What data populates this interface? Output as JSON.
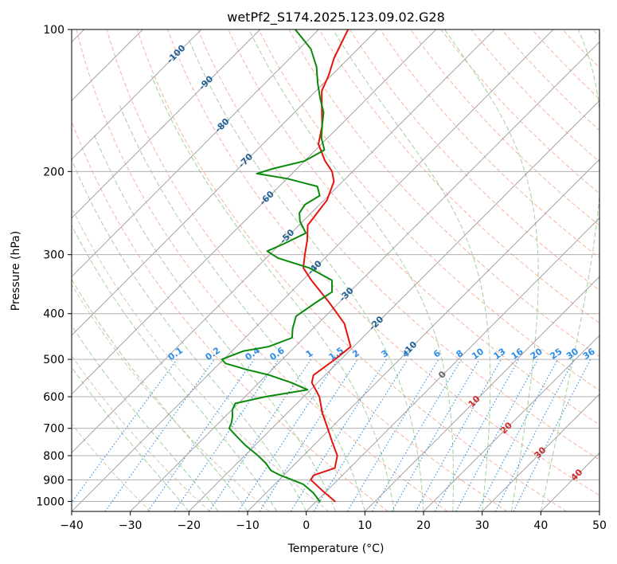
{
  "chart_data": {
    "type": "line",
    "chart_kind": "skew-T log-P diagram",
    "title": "wetPf2_S174.2025.123.09.02.G28",
    "xlabel": "Temperature (°C)",
    "ylabel": "Pressure (hPa)",
    "xlim": [
      -40,
      50
    ],
    "ylim": [
      1050,
      100
    ],
    "y_scale": "log",
    "grid": true,
    "x_ticks": [
      -40,
      -30,
      -20,
      -10,
      0,
      10,
      20,
      30,
      40,
      50
    ],
    "x_tick_labels": [
      "−40",
      "−30",
      "−20",
      "−10",
      "0",
      "10",
      "20",
      "30",
      "40",
      "50"
    ],
    "y_ticks": [
      1000,
      900,
      800,
      700,
      600,
      500,
      400,
      300,
      200,
      100
    ],
    "y_tick_labels": [
      "1000",
      "900",
      "800",
      "700",
      "600",
      "500",
      "400",
      "300",
      "200",
      "100"
    ],
    "colors": {
      "temperature": "#e8120c",
      "dewpoint": "#0a8a0a",
      "isotherm": "#9a9a9a",
      "dry_adiabat": "#f2a185",
      "moist_adiabat": "#9fd39a",
      "mixing_ratio": "#2b8ce8",
      "isotherm_label": "#1f5f96",
      "freezing_label": "#666666",
      "warm_label": "#d02a2a",
      "dry_adiabat_alt": "#cbb9a0"
    },
    "series": [
      {
        "name": "temperature",
        "color": "#e8120c",
        "points": [
          {
            "p": 1000,
            "t": 3.2
          },
          {
            "p": 950,
            "t": -0.7
          },
          {
            "p": 900,
            "t": -4.6
          },
          {
            "p": 880,
            "t": -4.9
          },
          {
            "p": 850,
            "t": -2.5
          },
          {
            "p": 800,
            "t": -4.2
          },
          {
            "p": 750,
            "t": -7.3
          },
          {
            "p": 700,
            "t": -10.5
          },
          {
            "p": 650,
            "t": -14.0
          },
          {
            "p": 600,
            "t": -17.3
          },
          {
            "p": 560,
            "t": -21.0
          },
          {
            "p": 540,
            "t": -22.0
          },
          {
            "p": 500,
            "t": -21.0
          },
          {
            "p": 470,
            "t": -20.5
          },
          {
            "p": 420,
            "t": -25.5
          },
          {
            "p": 380,
            "t": -31.5
          },
          {
            "p": 340,
            "t": -38.5
          },
          {
            "p": 320,
            "t": -42.0
          },
          {
            "p": 300,
            "t": -44.0
          },
          {
            "p": 280,
            "t": -46.0
          },
          {
            "p": 260,
            "t": -48.5
          },
          {
            "p": 245,
            "t": -49.0
          },
          {
            "p": 230,
            "t": -49.5
          },
          {
            "p": 210,
            "t": -51.5
          },
          {
            "p": 200,
            "t": -53.5
          },
          {
            "p": 190,
            "t": -56.5
          },
          {
            "p": 175,
            "t": -60.5
          },
          {
            "p": 160,
            "t": -63.0
          },
          {
            "p": 145,
            "t": -66.5
          },
          {
            "p": 135,
            "t": -69.0
          },
          {
            "p": 125,
            "t": -70.5
          },
          {
            "p": 115,
            "t": -72.5
          },
          {
            "p": 100,
            "t": -75.0
          }
        ]
      },
      {
        "name": "dewpoint",
        "color": "#0a8a0a",
        "points": [
          {
            "p": 1000,
            "t": 0.6
          },
          {
            "p": 960,
            "t": -1.9
          },
          {
            "p": 920,
            "t": -5.1
          },
          {
            "p": 900,
            "t": -7.8
          },
          {
            "p": 880,
            "t": -10.6
          },
          {
            "p": 860,
            "t": -13.0
          },
          {
            "p": 830,
            "t": -15.1
          },
          {
            "p": 800,
            "t": -17.7
          },
          {
            "p": 760,
            "t": -21.7
          },
          {
            "p": 720,
            "t": -25.4
          },
          {
            "p": 700,
            "t": -27.3
          },
          {
            "p": 680,
            "t": -27.9
          },
          {
            "p": 660,
            "t": -28.8
          },
          {
            "p": 640,
            "t": -29.9
          },
          {
            "p": 620,
            "t": -30.5
          },
          {
            "p": 600,
            "t": -26.5
          },
          {
            "p": 580,
            "t": -20.5
          },
          {
            "p": 560,
            "t": -24.5
          },
          {
            "p": 540,
            "t": -29.5
          },
          {
            "p": 525,
            "t": -34.5
          },
          {
            "p": 510,
            "t": -39.0
          },
          {
            "p": 500,
            "t": -40.3
          },
          {
            "p": 480,
            "t": -38.0
          },
          {
            "p": 470,
            "t": -34.5
          },
          {
            "p": 450,
            "t": -32.0
          },
          {
            "p": 430,
            "t": -33.5
          },
          {
            "p": 405,
            "t": -35.0
          },
          {
            "p": 380,
            "t": -34.0
          },
          {
            "p": 360,
            "t": -33.0
          },
          {
            "p": 340,
            "t": -35.0
          },
          {
            "p": 320,
            "t": -41.0
          },
          {
            "p": 305,
            "t": -48.0
          },
          {
            "p": 295,
            "t": -51.0
          },
          {
            "p": 285,
            "t": -49.5
          },
          {
            "p": 270,
            "t": -47.5
          },
          {
            "p": 255,
            "t": -50.5
          },
          {
            "p": 245,
            "t": -52.0
          },
          {
            "p": 235,
            "t": -52.5
          },
          {
            "p": 225,
            "t": -51.5
          },
          {
            "p": 215,
            "t": -53.5
          },
          {
            "p": 207,
            "t": -60.0
          },
          {
            "p": 202,
            "t": -66.0
          },
          {
            "p": 197,
            "t": -64.0
          },
          {
            "p": 190,
            "t": -60.0
          },
          {
            "p": 180,
            "t": -58.5
          },
          {
            "p": 170,
            "t": -61.0
          },
          {
            "p": 160,
            "t": -63.0
          },
          {
            "p": 150,
            "t": -65.0
          },
          {
            "p": 140,
            "t": -68.0
          },
          {
            "p": 130,
            "t": -71.0
          },
          {
            "p": 120,
            "t": -74.0
          },
          {
            "p": 110,
            "t": -78.0
          },
          {
            "p": 100,
            "t": -84.0
          }
        ]
      }
    ],
    "isotherm_labels": [
      {
        "value": -100,
        "text": "-100",
        "p": 113
      },
      {
        "value": -90,
        "text": "-90",
        "p": 130
      },
      {
        "value": -80,
        "text": "-80",
        "p": 160
      },
      {
        "value": -70,
        "text": "-70",
        "p": 190
      },
      {
        "value": -60,
        "text": "-60",
        "p": 228
      },
      {
        "value": -50,
        "text": "-50",
        "p": 275
      },
      {
        "value": -40,
        "text": "-40",
        "p": 320
      },
      {
        "value": -30,
        "text": "-30",
        "p": 365
      },
      {
        "value": -20,
        "text": "-20",
        "p": 420
      },
      {
        "value": -10,
        "text": "-10",
        "p": 475
      },
      {
        "value": 0,
        "text": "0",
        "p": 540
      },
      {
        "value": 10,
        "text": "10",
        "p": 615
      },
      {
        "value": 20,
        "text": "20",
        "p": 700
      },
      {
        "value": 30,
        "text": "30",
        "p": 790
      },
      {
        "value": 40,
        "text": "40",
        "p": 880
      }
    ],
    "mixing_ratios": [
      {
        "value": 0.1,
        "text": "0.1"
      },
      {
        "value": 0.2,
        "text": "0.2"
      },
      {
        "value": 0.4,
        "text": "0.4"
      },
      {
        "value": 0.6,
        "text": "0.6"
      },
      {
        "value": 1,
        "text": "1"
      },
      {
        "value": 1.5,
        "text": "1.5"
      },
      {
        "value": 2,
        "text": "2"
      },
      {
        "value": 3,
        "text": "3"
      },
      {
        "value": 4,
        "text": "4"
      },
      {
        "value": 6,
        "text": "6"
      },
      {
        "value": 8,
        "text": "8"
      },
      {
        "value": 10,
        "text": "10"
      },
      {
        "value": 13,
        "text": "13"
      },
      {
        "value": 16,
        "text": "16"
      },
      {
        "value": 20,
        "text": "20"
      },
      {
        "value": 25,
        "text": "25"
      },
      {
        "value": 30,
        "text": "30"
      },
      {
        "value": 36,
        "text": "36"
      }
    ],
    "mixing_ratio_label_pressure": 500
  }
}
